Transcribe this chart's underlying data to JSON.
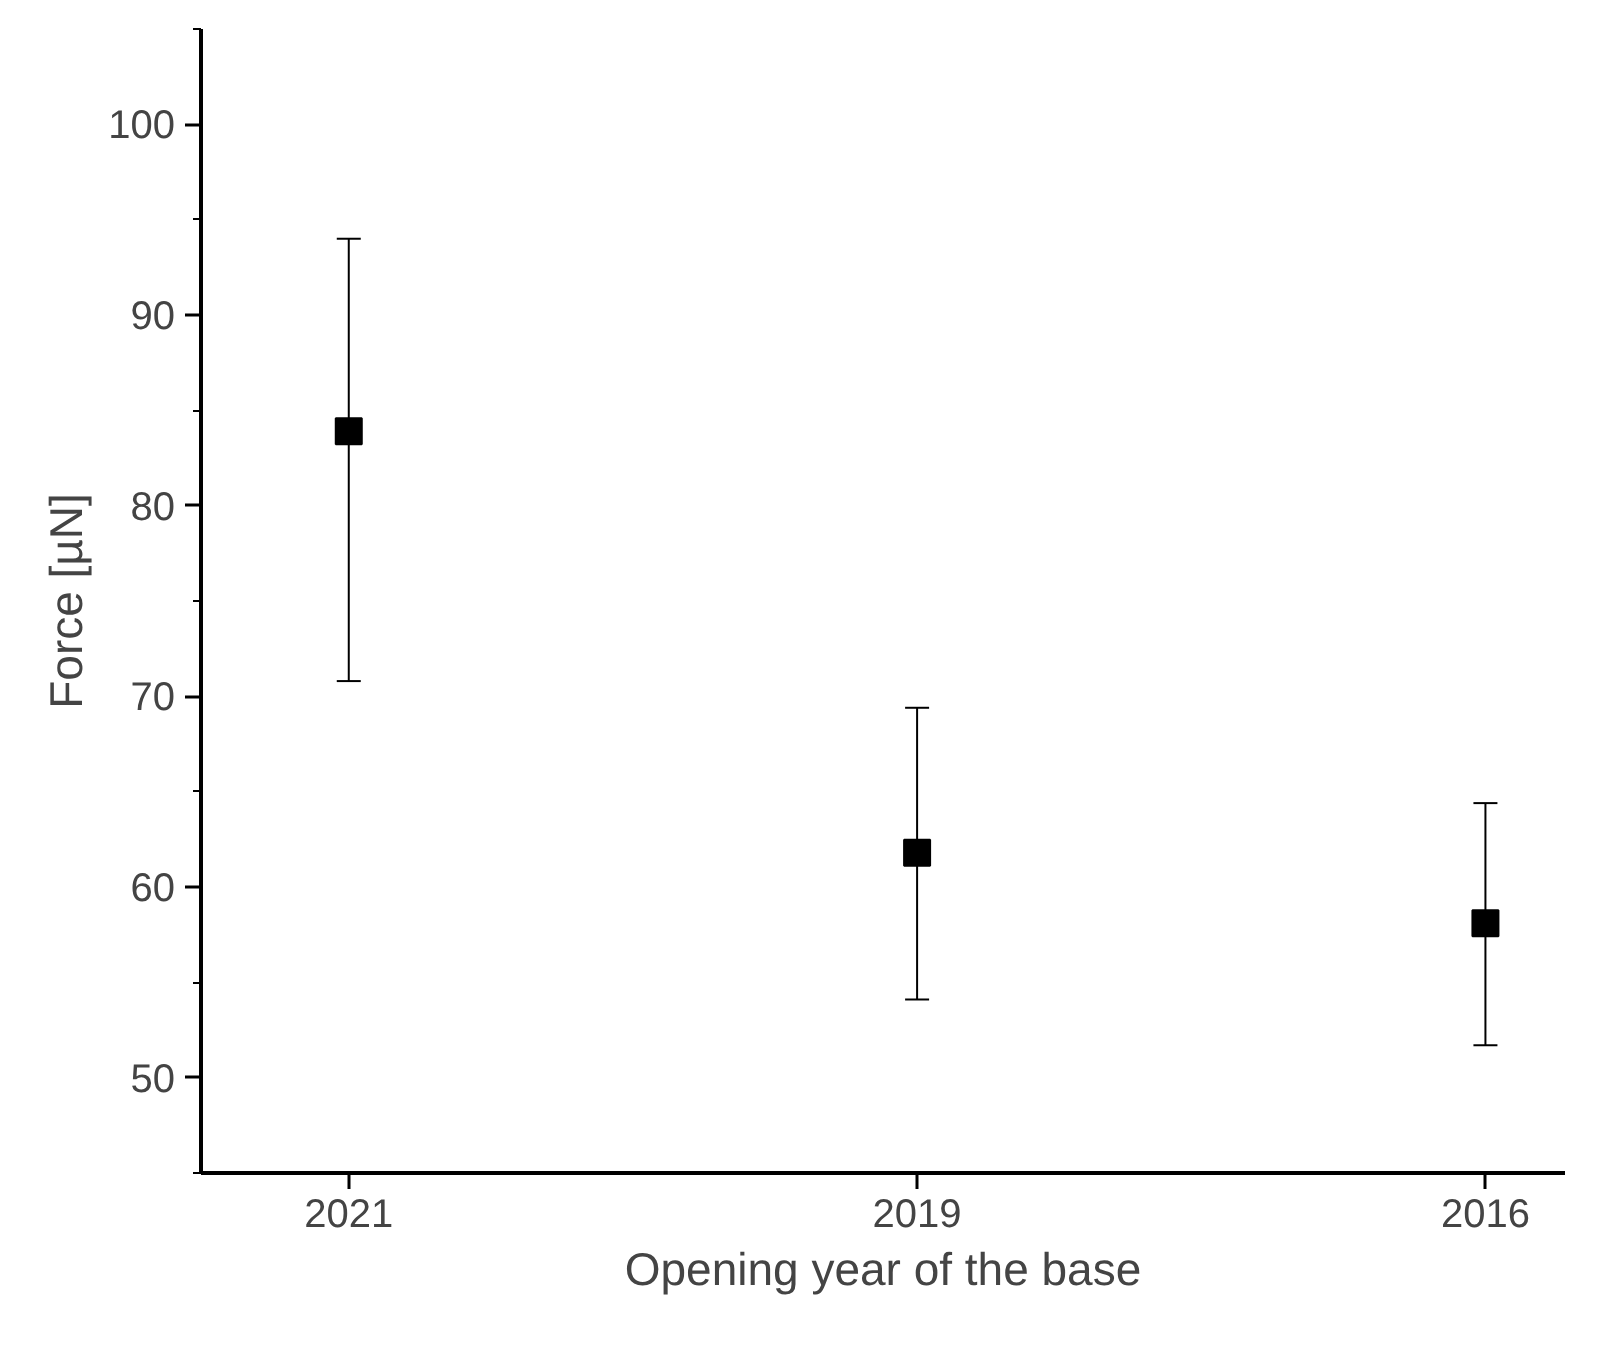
{
  "chart_data": {
    "type": "scatter",
    "xlabel": "Opening year of the base",
    "ylabel": "Force [µN]",
    "categories": [
      "2021",
      "2019",
      "2016"
    ],
    "values": [
      83.9,
      61.8,
      58.1
    ],
    "errors": [
      [
        70.8,
        94.0
      ],
      [
        54.1,
        69.4
      ],
      [
        51.7,
        64.4
      ]
    ],
    "color": "#000000",
    "marker": "square",
    "ylim": [
      45,
      105
    ],
    "yticks": [
      50,
      60,
      70,
      80,
      90,
      100
    ],
    "grid": false
  }
}
